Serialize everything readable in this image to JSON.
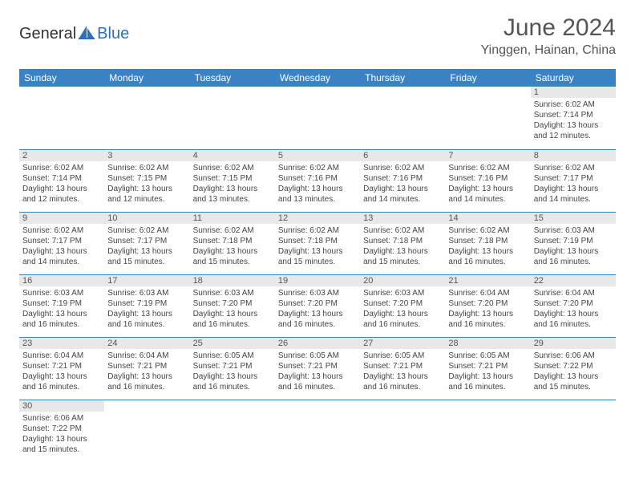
{
  "brand": {
    "general": "General",
    "blue": "Blue"
  },
  "header": {
    "month_title": "June 2024",
    "location": "Yinggen, Hainan, China"
  },
  "colors": {
    "header_bg": "#3b82c4",
    "header_text": "#ffffff",
    "daynum_bg": "#e8e8e8",
    "border": "#3b82c4",
    "title_color": "#555555"
  },
  "weekdays": [
    "Sunday",
    "Monday",
    "Tuesday",
    "Wednesday",
    "Thursday",
    "Friday",
    "Saturday"
  ],
  "grid": [
    [
      null,
      null,
      null,
      null,
      null,
      null,
      {
        "n": "1",
        "sr": "6:02 AM",
        "ss": "7:14 PM",
        "dl": "13 hours and 12 minutes."
      }
    ],
    [
      {
        "n": "2",
        "sr": "6:02 AM",
        "ss": "7:14 PM",
        "dl": "13 hours and 12 minutes."
      },
      {
        "n": "3",
        "sr": "6:02 AM",
        "ss": "7:15 PM",
        "dl": "13 hours and 12 minutes."
      },
      {
        "n": "4",
        "sr": "6:02 AM",
        "ss": "7:15 PM",
        "dl": "13 hours and 13 minutes."
      },
      {
        "n": "5",
        "sr": "6:02 AM",
        "ss": "7:16 PM",
        "dl": "13 hours and 13 minutes."
      },
      {
        "n": "6",
        "sr": "6:02 AM",
        "ss": "7:16 PM",
        "dl": "13 hours and 14 minutes."
      },
      {
        "n": "7",
        "sr": "6:02 AM",
        "ss": "7:16 PM",
        "dl": "13 hours and 14 minutes."
      },
      {
        "n": "8",
        "sr": "6:02 AM",
        "ss": "7:17 PM",
        "dl": "13 hours and 14 minutes."
      }
    ],
    [
      {
        "n": "9",
        "sr": "6:02 AM",
        "ss": "7:17 PM",
        "dl": "13 hours and 14 minutes."
      },
      {
        "n": "10",
        "sr": "6:02 AM",
        "ss": "7:17 PM",
        "dl": "13 hours and 15 minutes."
      },
      {
        "n": "11",
        "sr": "6:02 AM",
        "ss": "7:18 PM",
        "dl": "13 hours and 15 minutes."
      },
      {
        "n": "12",
        "sr": "6:02 AM",
        "ss": "7:18 PM",
        "dl": "13 hours and 15 minutes."
      },
      {
        "n": "13",
        "sr": "6:02 AM",
        "ss": "7:18 PM",
        "dl": "13 hours and 15 minutes."
      },
      {
        "n": "14",
        "sr": "6:02 AM",
        "ss": "7:18 PM",
        "dl": "13 hours and 16 minutes."
      },
      {
        "n": "15",
        "sr": "6:03 AM",
        "ss": "7:19 PM",
        "dl": "13 hours and 16 minutes."
      }
    ],
    [
      {
        "n": "16",
        "sr": "6:03 AM",
        "ss": "7:19 PM",
        "dl": "13 hours and 16 minutes."
      },
      {
        "n": "17",
        "sr": "6:03 AM",
        "ss": "7:19 PM",
        "dl": "13 hours and 16 minutes."
      },
      {
        "n": "18",
        "sr": "6:03 AM",
        "ss": "7:20 PM",
        "dl": "13 hours and 16 minutes."
      },
      {
        "n": "19",
        "sr": "6:03 AM",
        "ss": "7:20 PM",
        "dl": "13 hours and 16 minutes."
      },
      {
        "n": "20",
        "sr": "6:03 AM",
        "ss": "7:20 PM",
        "dl": "13 hours and 16 minutes."
      },
      {
        "n": "21",
        "sr": "6:04 AM",
        "ss": "7:20 PM",
        "dl": "13 hours and 16 minutes."
      },
      {
        "n": "22",
        "sr": "6:04 AM",
        "ss": "7:20 PM",
        "dl": "13 hours and 16 minutes."
      }
    ],
    [
      {
        "n": "23",
        "sr": "6:04 AM",
        "ss": "7:21 PM",
        "dl": "13 hours and 16 minutes."
      },
      {
        "n": "24",
        "sr": "6:04 AM",
        "ss": "7:21 PM",
        "dl": "13 hours and 16 minutes."
      },
      {
        "n": "25",
        "sr": "6:05 AM",
        "ss": "7:21 PM",
        "dl": "13 hours and 16 minutes."
      },
      {
        "n": "26",
        "sr": "6:05 AM",
        "ss": "7:21 PM",
        "dl": "13 hours and 16 minutes."
      },
      {
        "n": "27",
        "sr": "6:05 AM",
        "ss": "7:21 PM",
        "dl": "13 hours and 16 minutes."
      },
      {
        "n": "28",
        "sr": "6:05 AM",
        "ss": "7:21 PM",
        "dl": "13 hours and 16 minutes."
      },
      {
        "n": "29",
        "sr": "6:06 AM",
        "ss": "7:22 PM",
        "dl": "13 hours and 15 minutes."
      }
    ],
    [
      {
        "n": "30",
        "sr": "6:06 AM",
        "ss": "7:22 PM",
        "dl": "13 hours and 15 minutes."
      },
      null,
      null,
      null,
      null,
      null,
      null
    ]
  ],
  "labels": {
    "sunrise": "Sunrise:",
    "sunset": "Sunset:",
    "daylight": "Daylight:"
  }
}
